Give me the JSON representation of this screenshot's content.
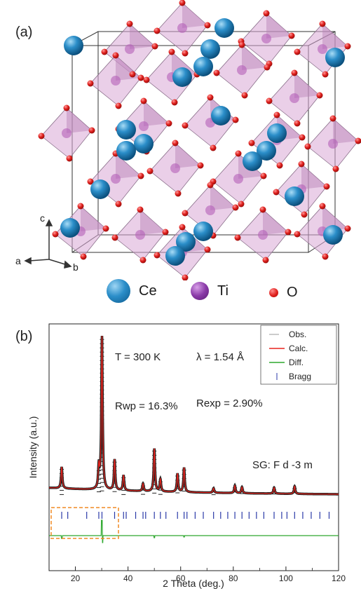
{
  "panel_a": {
    "label": "(a)",
    "axes": {
      "c": "c",
      "a": "a",
      "b": "b"
    },
    "legend": [
      {
        "symbol": "Ce",
        "color": "#2b8ec9"
      },
      {
        "symbol": "Ti",
        "color": "#8a3aa8"
      },
      {
        "symbol": "O",
        "color": "#e0201d"
      }
    ]
  },
  "panel_b": {
    "label": "(b)",
    "annotations": {
      "temperature": "T = 300 K",
      "wavelength": "λ = 1.54 Å",
      "rwp": "Rwp = 16.3%",
      "rexp": "Rexp = 2.90%",
      "space_group": "SG: F d -3 m"
    }
  },
  "chart_data": {
    "type": "line",
    "xlabel": "2 Theta (deg.)",
    "ylabel": "Intensity (a.u.)",
    "xlim": [
      10,
      120
    ],
    "xticks": [
      20,
      40,
      60,
      80,
      100,
      120
    ],
    "legend_position": "top-right",
    "series": [
      {
        "name": "Obs.",
        "color": "#555555"
      },
      {
        "name": "Calc.",
        "color": "#e8231d"
      },
      {
        "name": "Diff.",
        "color": "#2ea82e"
      },
      {
        "name": "Bragg",
        "color": "#2b3aa8"
      }
    ],
    "peaks": [
      {
        "x": 14.8,
        "h": 0.14
      },
      {
        "x": 28.9,
        "h": 0.14
      },
      {
        "x": 30.1,
        "h": 1.0
      },
      {
        "x": 34.9,
        "h": 0.2
      },
      {
        "x": 38.3,
        "h": 0.1
      },
      {
        "x": 45.7,
        "h": 0.05
      },
      {
        "x": 50.0,
        "h": 0.28
      },
      {
        "x": 52.3,
        "h": 0.08
      },
      {
        "x": 58.8,
        "h": 0.12
      },
      {
        "x": 61.3,
        "h": 0.16
      },
      {
        "x": 72.5,
        "h": 0.03
      },
      {
        "x": 80.6,
        "h": 0.05
      },
      {
        "x": 83.3,
        "h": 0.04
      },
      {
        "x": 95.5,
        "h": 0.04
      },
      {
        "x": 103.3,
        "h": 0.05
      }
    ],
    "baseline": 0.05,
    "bragg_positions": [
      14.8,
      17.1,
      24.3,
      28.9,
      30.1,
      34.9,
      38.3,
      39.3,
      42.9,
      45.7,
      46.7,
      50.0,
      52.3,
      54.4,
      58.8,
      61.3,
      62.4,
      65.5,
      68.6,
      72.5,
      75.2,
      77.9,
      80.6,
      83.3,
      86.0,
      88.8,
      91.6,
      95.5,
      98.4,
      100.4,
      103.3,
      106.4,
      109.6,
      112.9,
      116.4
    ]
  }
}
